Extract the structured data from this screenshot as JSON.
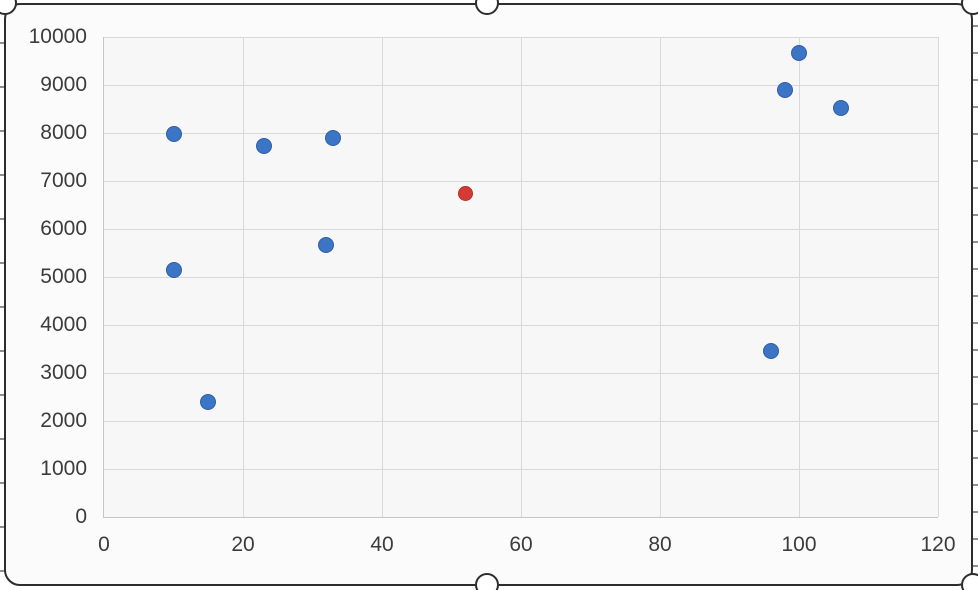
{
  "chart_data": {
    "type": "scatter",
    "title": "",
    "xlabel": "",
    "ylabel": "",
    "xlim": [
      0,
      120
    ],
    "ylim": [
      0,
      10000
    ],
    "x_tick_step": 20,
    "y_tick_step": 1000,
    "grid": true,
    "legend_position": "none",
    "series": [
      {
        "name": "blue-series",
        "color": "#3c74c6",
        "marker_size": 16,
        "points": [
          [
            10,
            7970
          ],
          [
            23,
            7720
          ],
          [
            33,
            7900
          ],
          [
            10,
            5150
          ],
          [
            32,
            5660
          ],
          [
            15,
            2400
          ],
          [
            96,
            3450
          ],
          [
            98,
            8900
          ],
          [
            100,
            9660
          ],
          [
            106,
            8520
          ]
        ]
      },
      {
        "name": "red-series",
        "color": "#d53b34",
        "marker_size": 15,
        "points": [
          [
            52,
            6730
          ]
        ]
      }
    ]
  },
  "axis": {
    "x_tick_labels": [
      "0",
      "20",
      "40",
      "60",
      "80",
      "100",
      "120"
    ],
    "y_tick_labels": [
      "0",
      "1000",
      "2000",
      "3000",
      "4000",
      "5000",
      "6000",
      "7000",
      "8000",
      "9000",
      "10000"
    ]
  },
  "colors": {
    "page_background": "#ffffff",
    "chart_background": "#fbfbfb",
    "plot_background": "#f7f7f7",
    "chart_border": "#2d2d2d",
    "gridline": "#d9d9d9",
    "axis_line": "#c6c6c6",
    "tick_label": "#3c3c3c",
    "worksheet_tick": "#8f8f8f"
  }
}
